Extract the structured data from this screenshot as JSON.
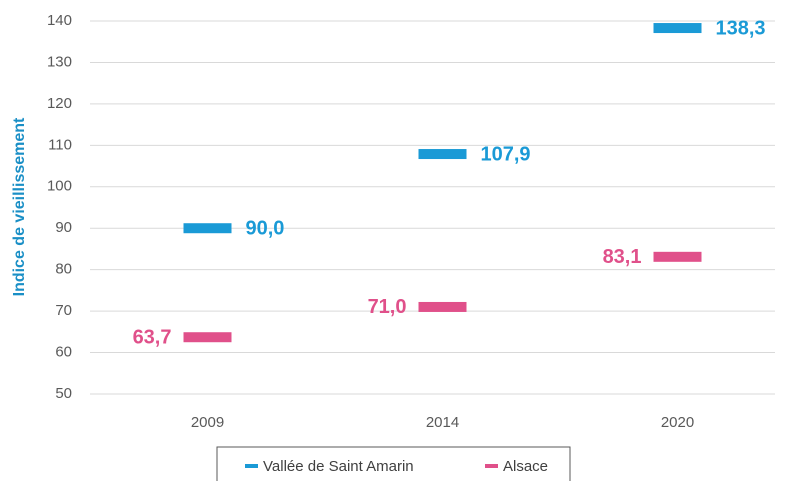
{
  "chart_data": {
    "type": "scatter",
    "y_label": "Indice de vieillissement",
    "categories": [
      "2009",
      "2014",
      "2020"
    ],
    "series": [
      {
        "name": "Vallée de Saint Amarin",
        "color": "#1a9ad6",
        "values": [
          90.0,
          107.9,
          138.3
        ],
        "value_labels": [
          "90,0",
          "107,9",
          "138,3"
        ]
      },
      {
        "name": "Alsace",
        "color": "#e0508a",
        "values": [
          63.7,
          71.0,
          83.1
        ],
        "value_labels": [
          "63,7",
          "71,0",
          "83,1"
        ]
      }
    ],
    "ylim": [
      50,
      140
    ],
    "yticks": [
      50,
      60,
      70,
      80,
      90,
      100,
      110,
      120,
      130,
      140
    ],
    "grid": true,
    "legend": "bottom"
  }
}
